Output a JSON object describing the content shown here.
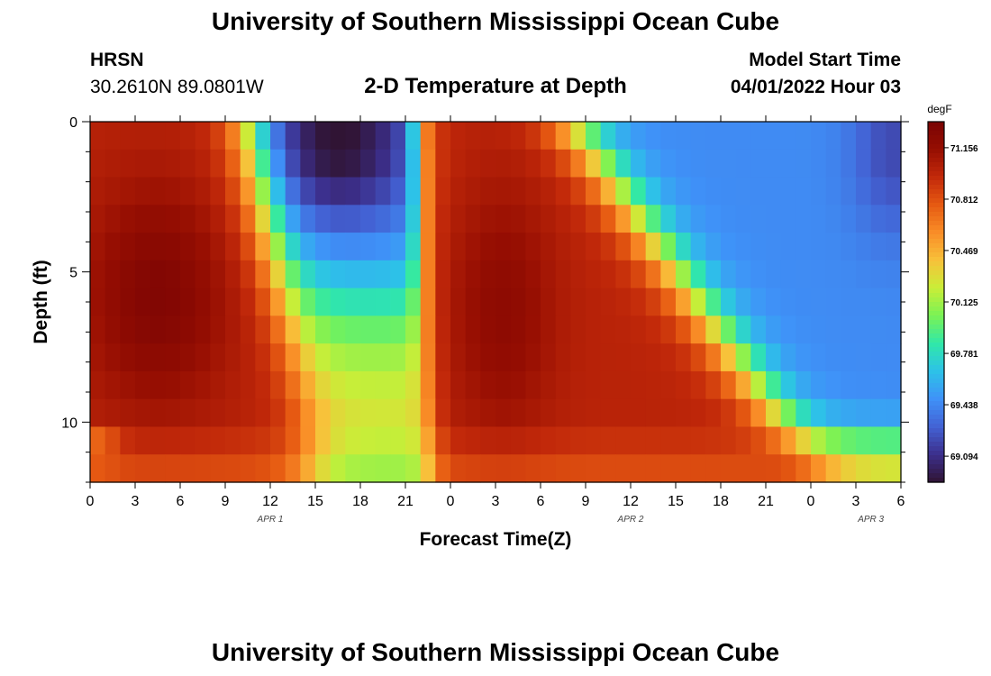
{
  "header": {
    "title": "University of Southern Mississippi Ocean Cube",
    "station": "HRSN",
    "coords": "30.2610N  89.0801W",
    "subtitle": "2-D Temperature at Depth",
    "start_label": "Model Start Time",
    "start_value": "04/01/2022 Hour 03"
  },
  "footer": {
    "title": "University of Southern Mississippi Ocean Cube"
  },
  "chart_data": {
    "type": "heatmap",
    "title": "2-D Temperature at Depth",
    "xlabel": "Forecast Time(Z)",
    "ylabel": "Depth (ft)",
    "x_hours_range": [
      0,
      54
    ],
    "x_tick_hours": [
      0,
      3,
      6,
      9,
      12,
      15,
      18,
      21,
      24,
      27,
      30,
      33,
      36,
      39,
      42,
      45,
      48,
      51,
      54
    ],
    "x_tick_labels": [
      "0",
      "3",
      "6",
      "9",
      "12",
      "15",
      "18",
      "21",
      "0",
      "3",
      "6",
      "9",
      "12",
      "15",
      "18",
      "21",
      "0",
      "3",
      "6"
    ],
    "date_labels": [
      {
        "hour": 12,
        "text": "APR 1"
      },
      {
        "hour": 36,
        "text": "APR 2"
      },
      {
        "hour": 52,
        "text": "APR 3"
      }
    ],
    "ylim": [
      0,
      12
    ],
    "y_ticks": [
      0,
      5,
      10
    ],
    "depth_levels_ft": [
      0,
      1,
      2,
      3,
      4,
      5,
      6,
      7,
      8,
      9,
      10,
      11,
      12
    ],
    "colorbar": {
      "unit": "degF",
      "min": 68.92,
      "max": 71.33,
      "tick_values": [
        71.156,
        70.812,
        70.469,
        70.125,
        69.781,
        69.438,
        69.094
      ],
      "tick_labels": [
        "71.156",
        "70.812",
        "70.469",
        "70.125",
        "69.781",
        "69.438",
        "69.094"
      ],
      "colors": [
        "#301434",
        "#3c2f8c",
        "#4362d4",
        "#3f92f8",
        "#2dc2e8",
        "#30e8a8",
        "#7af255",
        "#c9ee38",
        "#f8c13a",
        "#f98d27",
        "#e65a12",
        "#c2290a",
        "#960e02",
        "#7a0403"
      ]
    },
    "features": {
      "warm_max_near_hour_4_depth_6": 71.33,
      "cold_core_near_hour_16_surface": 69.0,
      "cold_front_mid_day_2": 69.2
    }
  }
}
